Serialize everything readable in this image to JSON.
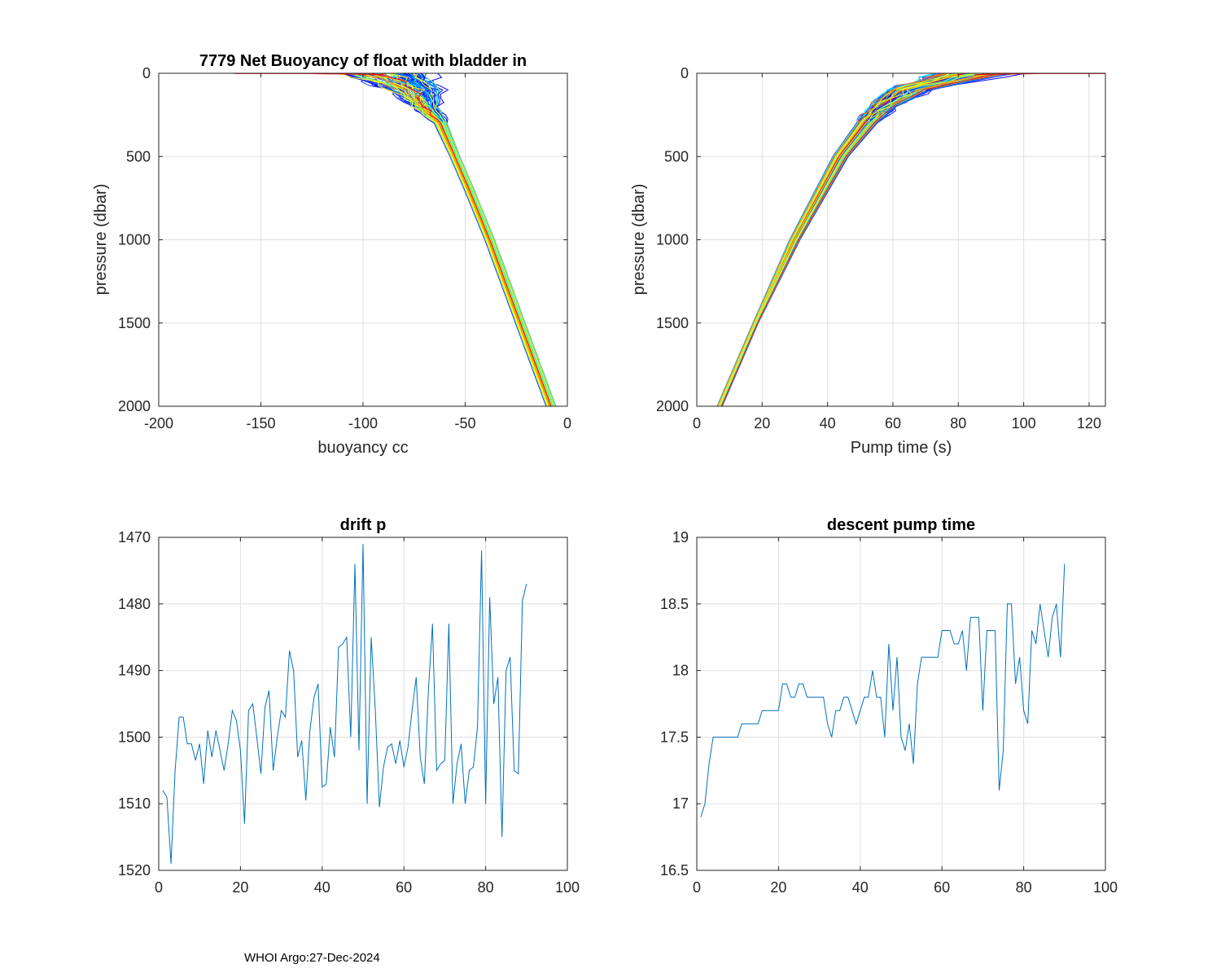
{
  "footer": "WHOI Argo:27-Dec-2024",
  "colors": {
    "series": "#0072BD",
    "grid": "#DFDFDF",
    "axis": "#262626",
    "profile_palette": [
      "#0000ff",
      "#1e50ff",
      "#00a0ff",
      "#00ffff",
      "#7fff7f",
      "#ffff00",
      "#ff7f00",
      "#ff0000"
    ]
  },
  "chart_data": [
    {
      "id": "buoyancy",
      "type": "line",
      "title": "7779 Net Buoyancy of float with bladder in",
      "xlabel": "buoyancy cc",
      "ylabel": "pressure (dbar)",
      "xlim": [
        -200,
        0
      ],
      "ylim": [
        0,
        2000
      ],
      "y_reversed": true,
      "xticks": [
        -200,
        -150,
        -100,
        -50,
        0
      ],
      "yticks": [
        0,
        500,
        1000,
        1500,
        2000
      ],
      "series_count": 90,
      "envelope": {
        "pressure": [
          0,
          100,
          200,
          300,
          500,
          700,
          1000,
          1500,
          2000
        ],
        "buoyancy_mean": [
          -90,
          -75,
          -70,
          -62,
          -55,
          -48,
          -38,
          -23,
          -8
        ],
        "buoyancy_spread": [
          25,
          15,
          8,
          4,
          3,
          3,
          3,
          3,
          3
        ]
      }
    },
    {
      "id": "pump",
      "type": "line",
      "title": "",
      "xlabel": "Pump time (s)",
      "ylabel": "pressure (dbar)",
      "xlim": [
        0,
        125
      ],
      "ylim": [
        0,
        2000
      ],
      "y_reversed": true,
      "xticks": [
        0,
        20,
        40,
        60,
        80,
        100,
        120
      ],
      "yticks": [
        0,
        500,
        1000,
        1500,
        2000
      ],
      "series_count": 90,
      "envelope": {
        "pressure": [
          0,
          50,
          100,
          200,
          300,
          500,
          1000,
          1500,
          2000
        ],
        "pumptime_mean": [
          85,
          75,
          65,
          57,
          52,
          44,
          30,
          18,
          7
        ],
        "pumptime_spread": [
          15,
          10,
          8,
          5,
          4,
          3,
          2,
          1,
          1
        ]
      }
    },
    {
      "id": "drift",
      "type": "line",
      "title": "drift p",
      "xlabel": "",
      "ylabel": "",
      "xlim": [
        0,
        100
      ],
      "ylim": [
        1470,
        1520
      ],
      "y_reversed": true,
      "xticks": [
        0,
        20,
        40,
        60,
        80,
        100
      ],
      "yticks": [
        1470,
        1480,
        1490,
        1500,
        1510,
        1520
      ],
      "x": [
        1,
        2,
        3,
        4,
        5,
        6,
        7,
        8,
        9,
        10,
        11,
        12,
        13,
        14,
        15,
        16,
        17,
        18,
        19,
        20,
        21,
        22,
        23,
        24,
        25,
        26,
        27,
        28,
        29,
        30,
        31,
        32,
        33,
        34,
        35,
        36,
        37,
        38,
        39,
        40,
        41,
        42,
        43,
        44,
        45,
        46,
        47,
        48,
        49,
        50,
        51,
        52,
        53,
        54,
        55,
        56,
        57,
        58,
        59,
        60,
        61,
        62,
        63,
        64,
        65,
        66,
        67,
        68,
        69,
        70,
        71,
        72,
        73,
        74,
        75,
        76,
        77,
        78,
        79,
        80,
        81,
        82,
        83,
        84,
        85,
        86,
        87,
        88,
        89,
        90
      ],
      "values": [
        1508,
        1509,
        1519,
        1505,
        1497,
        1497,
        1501,
        1501,
        1503.5,
        1501,
        1507,
        1499,
        1503,
        1499,
        1502,
        1505,
        1501,
        1496,
        1497.5,
        1502,
        1513,
        1496,
        1495,
        1500,
        1505.5,
        1495.5,
        1493,
        1505,
        1500,
        1496,
        1497,
        1487,
        1490,
        1503,
        1500.5,
        1509.5,
        1499,
        1494,
        1492,
        1507.5,
        1507,
        1498.5,
        1503,
        1486.5,
        1486,
        1485,
        1500,
        1474,
        1502,
        1471,
        1510,
        1485,
        1496,
        1510.5,
        1504.5,
        1501.5,
        1501,
        1504,
        1500.5,
        1504.5,
        1501.5,
        1496,
        1491,
        1503,
        1507,
        1493,
        1483,
        1505,
        1504,
        1503.5,
        1483,
        1510,
        1504,
        1501,
        1510,
        1505,
        1504.5,
        1498.5,
        1472,
        1510,
        1479,
        1495,
        1491,
        1515,
        1490,
        1488,
        1505,
        1505.5,
        1479.5,
        1477
      ]
    },
    {
      "id": "descent",
      "type": "line",
      "title": "descent pump time",
      "xlabel": "",
      "ylabel": "",
      "xlim": [
        0,
        100
      ],
      "ylim": [
        16.5,
        19
      ],
      "y_reversed": false,
      "xticks": [
        0,
        20,
        40,
        60,
        80,
        100
      ],
      "yticks": [
        16.5,
        17,
        17.5,
        18,
        18.5,
        19
      ],
      "x": [
        1,
        2,
        3,
        4,
        5,
        6,
        7,
        8,
        9,
        10,
        11,
        12,
        13,
        14,
        15,
        16,
        17,
        18,
        19,
        20,
        21,
        22,
        23,
        24,
        25,
        26,
        27,
        28,
        29,
        30,
        31,
        32,
        33,
        34,
        35,
        36,
        37,
        38,
        39,
        40,
        41,
        42,
        43,
        44,
        45,
        46,
        47,
        48,
        49,
        50,
        51,
        52,
        53,
        54,
        55,
        56,
        57,
        58,
        59,
        60,
        61,
        62,
        63,
        64,
        65,
        66,
        67,
        68,
        69,
        70,
        71,
        72,
        73,
        74,
        75,
        76,
        77,
        78,
        79,
        80,
        81,
        82,
        83,
        84,
        85,
        86,
        87,
        88,
        89,
        90
      ],
      "values": [
        16.9,
        17.0,
        17.3,
        17.5,
        17.5,
        17.5,
        17.5,
        17.5,
        17.5,
        17.5,
        17.6,
        17.6,
        17.6,
        17.6,
        17.6,
        17.7,
        17.7,
        17.7,
        17.7,
        17.7,
        17.9,
        17.9,
        17.8,
        17.8,
        17.9,
        17.9,
        17.8,
        17.8,
        17.8,
        17.8,
        17.8,
        17.6,
        17.5,
        17.7,
        17.7,
        17.8,
        17.8,
        17.7,
        17.6,
        17.7,
        17.8,
        17.8,
        18.0,
        17.8,
        17.8,
        17.5,
        18.2,
        17.7,
        18.1,
        17.5,
        17.4,
        17.6,
        17.3,
        17.9,
        18.1,
        18.1,
        18.1,
        18.1,
        18.1,
        18.3,
        18.3,
        18.3,
        18.2,
        18.2,
        18.3,
        18.0,
        18.4,
        18.4,
        18.4,
        17.7,
        18.3,
        18.3,
        18.3,
        17.1,
        17.4,
        18.5,
        18.5,
        17.9,
        18.1,
        17.7,
        17.6,
        18.3,
        18.2,
        18.5,
        18.3,
        18.1,
        18.4,
        18.5,
        18.1,
        18.8
      ]
    }
  ]
}
